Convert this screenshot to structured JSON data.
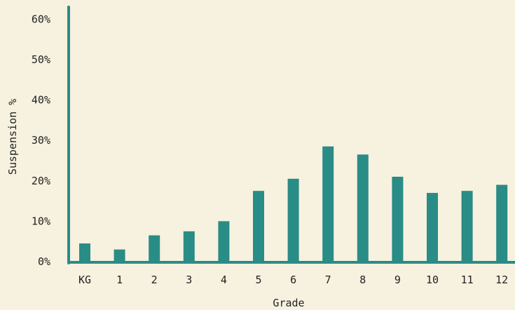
{
  "chart_data": {
    "type": "bar",
    "xlabel": "Grade",
    "ylabel": "Suspension %",
    "categories": [
      "KG",
      "1",
      "2",
      "3",
      "4",
      "5",
      "6",
      "7",
      "8",
      "9",
      "10",
      "11",
      "12"
    ],
    "values": [
      4.5,
      3.0,
      6.5,
      7.5,
      10.0,
      17.5,
      20.5,
      28.5,
      26.5,
      21.0,
      17.0,
      17.5,
      19.0
    ],
    "ylim": [
      0,
      63
    ],
    "yticks": [
      0,
      10,
      20,
      30,
      40,
      50,
      60
    ],
    "ytick_labels": [
      "0%",
      "10%",
      "20%",
      "30%",
      "40%",
      "50%",
      "60%"
    ],
    "bar_color": "#2a8c86",
    "axis_color": "#2a8c86",
    "background": "#f7f1df",
    "grid": false,
    "legend": "none"
  }
}
